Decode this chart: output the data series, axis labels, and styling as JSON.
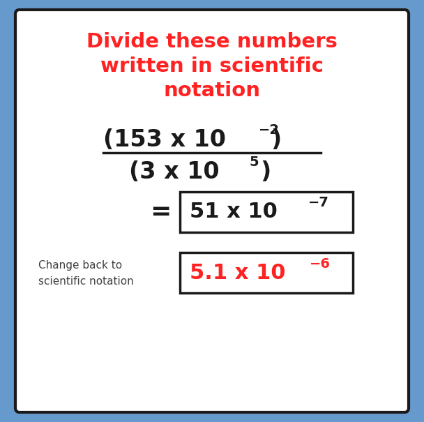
{
  "bg_color": "#6699cc",
  "card_color": "#ffffff",
  "card_border_color": "#1a1a1a",
  "title_line1": "Divide these numbers",
  "title_line2": "written in scientific",
  "title_line3": "notation",
  "title_color": "#ff2222",
  "fraction_color": "#1a1a1a",
  "result_color": "#1a1a1a",
  "final_color": "#ff2222",
  "label_color": "#404040",
  "box_border_color": "#1a1a1a"
}
